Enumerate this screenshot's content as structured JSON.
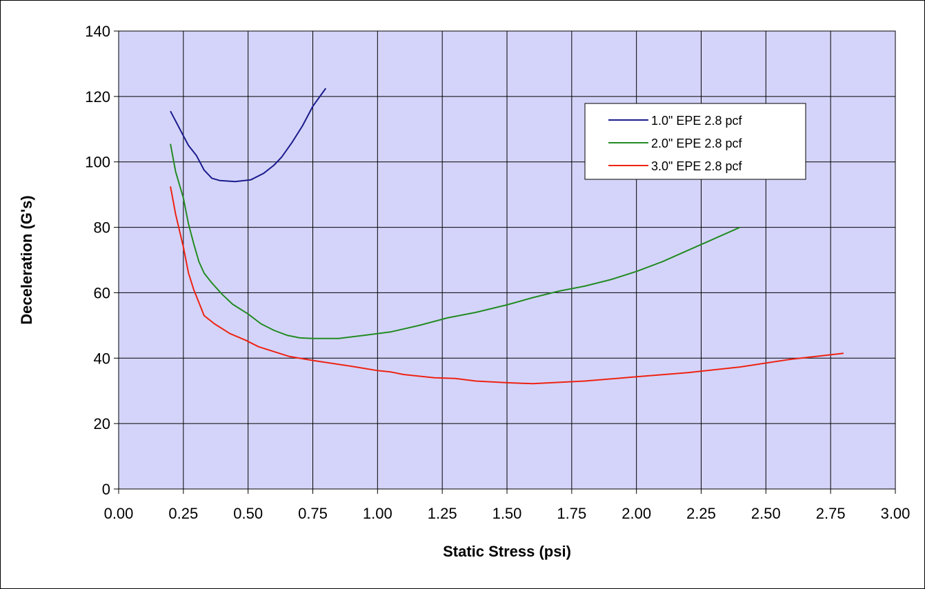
{
  "chart_data": {
    "type": "line",
    "xlabel": "Static Stress (psi)",
    "ylabel": "Deceleration (G's)",
    "xlim": [
      0,
      3
    ],
    "ylim": [
      0,
      140
    ],
    "x_ticks": [
      "0.00",
      "0.25",
      "0.50",
      "0.75",
      "1.00",
      "1.25",
      "1.50",
      "1.75",
      "2.00",
      "2.25",
      "2.50",
      "2.75",
      "3.00"
    ],
    "y_ticks": [
      "0",
      "20",
      "40",
      "60",
      "80",
      "100",
      "120",
      "140"
    ],
    "grid": true,
    "plot_background": "#d4d4fa",
    "legend_position": "top-right",
    "series": [
      {
        "name": "1.0\" EPE 2.8 pcf",
        "color": "#1a1a8c",
        "points": [
          [
            0.2,
            115.5
          ],
          [
            0.25,
            108
          ],
          [
            0.27,
            105
          ],
          [
            0.3,
            102
          ],
          [
            0.33,
            97.5
          ],
          [
            0.36,
            95
          ],
          [
            0.39,
            94.3
          ],
          [
            0.45,
            94
          ],
          [
            0.51,
            94.5
          ],
          [
            0.56,
            96.5
          ],
          [
            0.6,
            99
          ],
          [
            0.63,
            101.5
          ],
          [
            0.67,
            106
          ],
          [
            0.71,
            111
          ],
          [
            0.75,
            117
          ],
          [
            0.8,
            122.5
          ]
        ]
      },
      {
        "name": "2.0\" EPE 2.8 pcf",
        "color": "#228b22",
        "points": [
          [
            0.2,
            105.5
          ],
          [
            0.22,
            97
          ],
          [
            0.25,
            89
          ],
          [
            0.27,
            81
          ],
          [
            0.29,
            75
          ],
          [
            0.31,
            69.5
          ],
          [
            0.33,
            66
          ],
          [
            0.36,
            63
          ],
          [
            0.4,
            59.5
          ],
          [
            0.44,
            56.5
          ],
          [
            0.5,
            53.5
          ],
          [
            0.55,
            50.5
          ],
          [
            0.6,
            48.5
          ],
          [
            0.65,
            47
          ],
          [
            0.7,
            46.2
          ],
          [
            0.75,
            46
          ],
          [
            0.85,
            46
          ],
          [
            0.95,
            47
          ],
          [
            1.05,
            48
          ],
          [
            1.16,
            50
          ],
          [
            1.27,
            52.3
          ],
          [
            1.38,
            54
          ],
          [
            1.5,
            56.3
          ],
          [
            1.6,
            58.5
          ],
          [
            1.7,
            60.5
          ],
          [
            1.8,
            62
          ],
          [
            1.9,
            64
          ],
          [
            2.0,
            66.5
          ],
          [
            2.1,
            69.5
          ],
          [
            2.2,
            73
          ],
          [
            2.3,
            76.5
          ],
          [
            2.4,
            80
          ]
        ]
      },
      {
        "name": "3.0\" EPE 2.8 pcf",
        "color": "#ee2211",
        "points": [
          [
            0.2,
            92.5
          ],
          [
            0.22,
            84
          ],
          [
            0.25,
            74
          ],
          [
            0.27,
            66
          ],
          [
            0.29,
            61
          ],
          [
            0.31,
            57
          ],
          [
            0.33,
            53
          ],
          [
            0.37,
            50.5
          ],
          [
            0.43,
            47.5
          ],
          [
            0.49,
            45.5
          ],
          [
            0.54,
            43.5
          ],
          [
            0.6,
            42
          ],
          [
            0.66,
            40.5
          ],
          [
            0.75,
            39.3
          ],
          [
            0.9,
            37.5
          ],
          [
            1.0,
            36.2
          ],
          [
            1.05,
            35.8
          ],
          [
            1.1,
            35
          ],
          [
            1.16,
            34.5
          ],
          [
            1.22,
            34
          ],
          [
            1.3,
            33.8
          ],
          [
            1.38,
            33
          ],
          [
            1.5,
            32.5
          ],
          [
            1.6,
            32.2
          ],
          [
            1.8,
            33
          ],
          [
            2.0,
            34.3
          ],
          [
            2.2,
            35.6
          ],
          [
            2.4,
            37.3
          ],
          [
            2.6,
            39.7
          ],
          [
            2.8,
            41.5
          ]
        ]
      }
    ]
  }
}
